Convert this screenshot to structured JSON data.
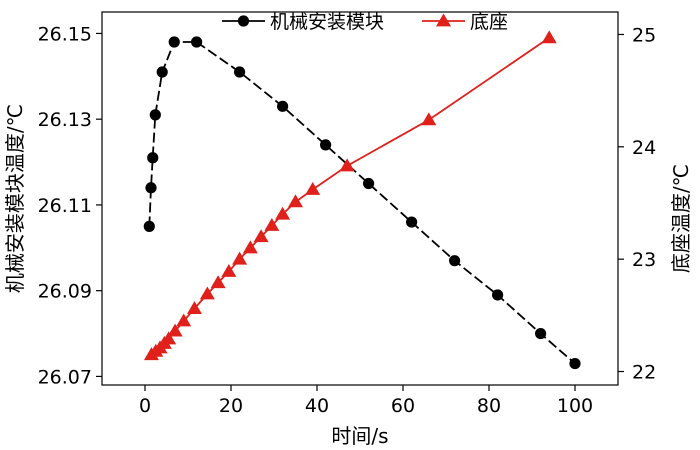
{
  "chart_data": {
    "type": "line",
    "xlabel": "时间/s",
    "ylabel_left": "机械安装模块温度/℃",
    "ylabel_right": "底座温度/℃",
    "xlim": [
      -10,
      110
    ],
    "xticks": [
      0,
      20,
      40,
      60,
      80,
      100
    ],
    "ylim_left": [
      26.068,
      26.155
    ],
    "yticks_left": [
      26.07,
      26.09,
      26.11,
      26.13,
      26.15
    ],
    "ylim_right": [
      21.88,
      25.2
    ],
    "yticks_right": [
      22,
      23,
      24,
      25
    ],
    "legend_position": "top-center",
    "series": [
      {
        "name": "机械安装模块",
        "axis": "left",
        "color": "#000000",
        "marker": "circle",
        "x": [
          1.0,
          1.4,
          1.8,
          2.4,
          4.0,
          6.8,
          12.0,
          22.0,
          32.0,
          42.0,
          52.0,
          62.0,
          72.0,
          82.0,
          92.0,
          100.0
        ],
        "y": [
          26.105,
          26.114,
          26.121,
          26.131,
          26.141,
          26.148,
          26.148,
          26.141,
          26.133,
          26.124,
          26.115,
          26.106,
          26.097,
          26.089,
          26.08,
          26.073
        ]
      },
      {
        "name": "底座",
        "axis": "right",
        "color": "#e0201b",
        "marker": "triangle",
        "x": [
          1.5,
          2.5,
          3.5,
          4.5,
          5.5,
          7.0,
          9.0,
          11.5,
          14.5,
          17.0,
          19.5,
          22.0,
          24.5,
          27.0,
          29.5,
          32.0,
          35.0,
          39.0,
          47.0,
          66.0,
          94.0
        ],
        "y": [
          22.15,
          22.18,
          22.21,
          22.25,
          22.29,
          22.36,
          22.45,
          22.56,
          22.69,
          22.79,
          22.89,
          23.0,
          23.1,
          23.2,
          23.3,
          23.4,
          23.51,
          23.62,
          23.83,
          24.24,
          24.97
        ]
      }
    ]
  }
}
